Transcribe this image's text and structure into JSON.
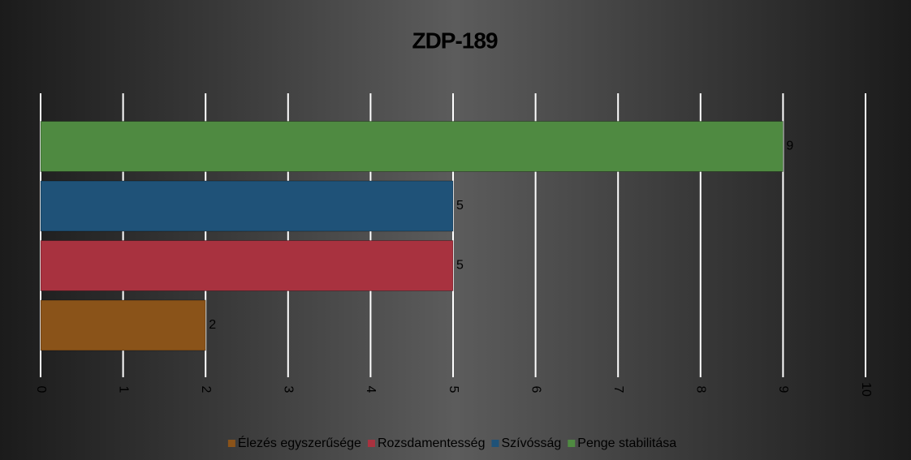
{
  "chart_data": {
    "type": "bar",
    "orientation": "horizontal",
    "title": "ZDP-189",
    "categories": [
      null
    ],
    "series": [
      {
        "name": "Élezés egyszerűsége",
        "color": "#8a5319",
        "values": [
          2
        ]
      },
      {
        "name": "Rozsdamentesség",
        "color": "#a8323f",
        "values": [
          5
        ]
      },
      {
        "name": "Szívósság",
        "color": "#1f5278",
        "values": [
          5
        ]
      },
      {
        "name": "Penge stabilitása",
        "color": "#4f8a41",
        "values": [
          9
        ]
      }
    ],
    "xlim": [
      0,
      10
    ],
    "xticks": [
      0,
      1,
      2,
      3,
      4,
      5,
      6,
      7,
      8,
      9,
      10
    ],
    "grid": true,
    "legend": "bottom"
  }
}
